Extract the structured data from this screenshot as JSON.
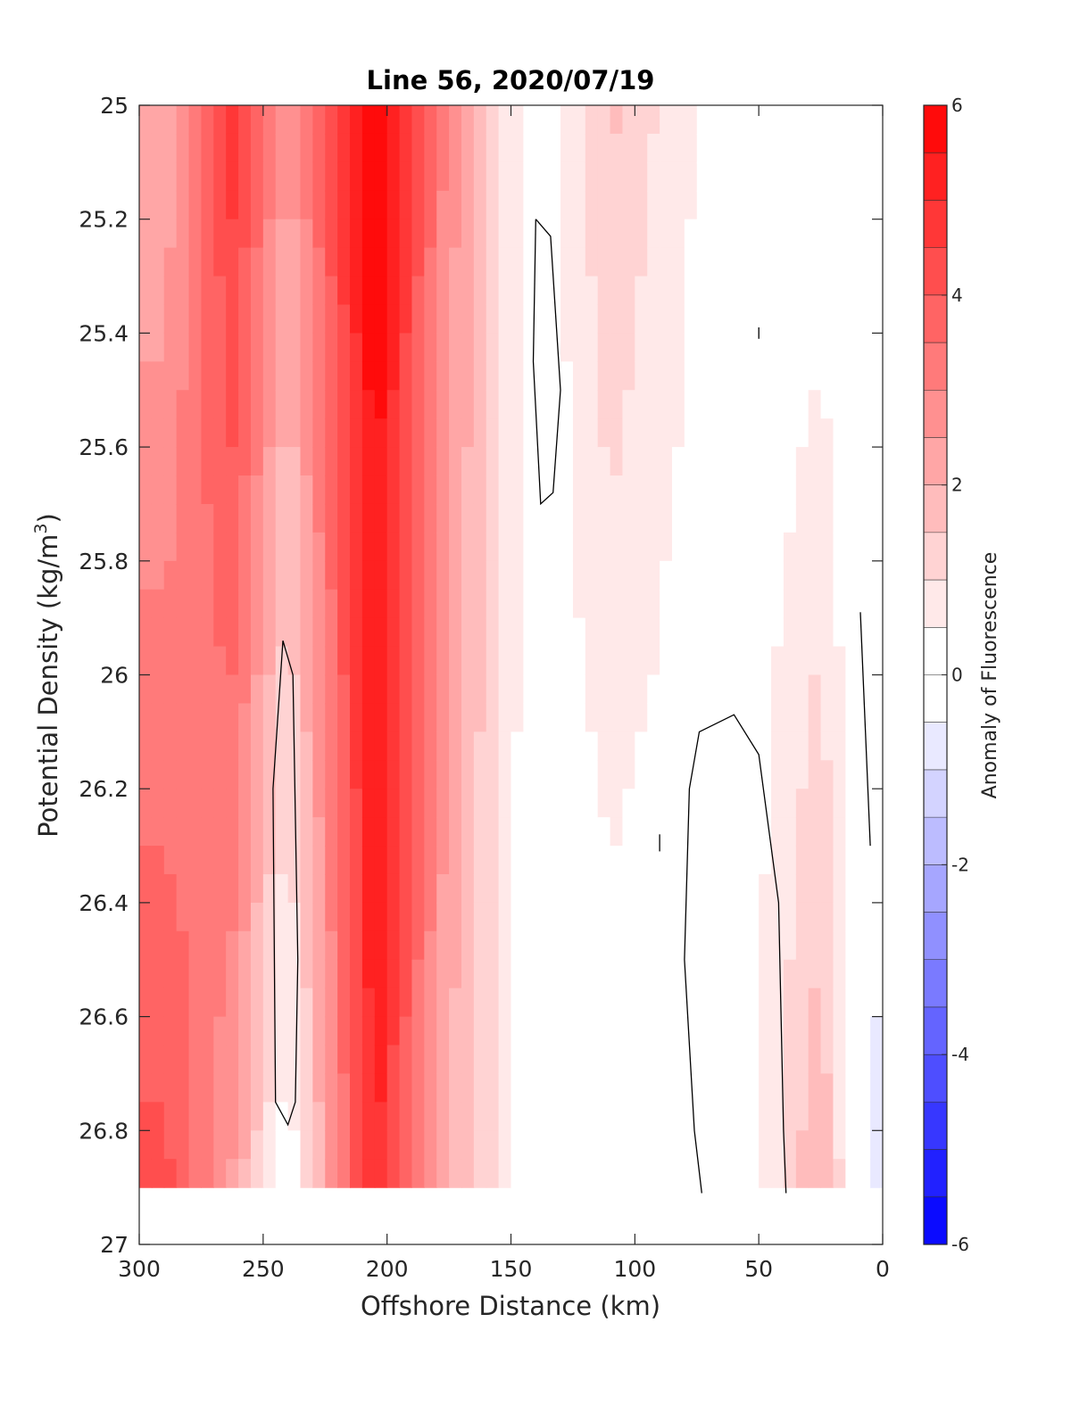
{
  "chart_data": {
    "type": "heatmap",
    "subtype": "filled-contour",
    "title": "Line 56, 2020/07/19",
    "xlabel": "Offshore Distance (km)",
    "ylabel": "Potential Density (kg/m³)",
    "ylabel_base": "Potential Density (kg/m",
    "ylabel_sup": "3",
    "ylabel_close": ")",
    "xlim": [
      300,
      0
    ],
    "ylim": [
      25,
      27
    ],
    "x_reversed": true,
    "y_reversed": true,
    "xticks": [
      300,
      250,
      200,
      150,
      100,
      50,
      0
    ],
    "yticks": [
      25,
      25.2,
      25.4,
      25.6,
      25.8,
      26,
      26.2,
      26.4,
      26.6,
      26.8,
      27
    ],
    "xtick_labels": [
      "300",
      "250",
      "200",
      "150",
      "100",
      "50",
      "0"
    ],
    "ytick_labels": [
      "25",
      "25.2",
      "25.4",
      "25.6",
      "25.8",
      "26",
      "26.2",
      "26.4",
      "26.6",
      "26.8",
      "27"
    ],
    "colorbar": {
      "label": "Anomaly of Fluorescence",
      "range": [
        -6,
        6
      ],
      "levels": [
        -6,
        -5.5,
        -5,
        -4.5,
        -4,
        -3.5,
        -3,
        -2.5,
        -2,
        -1.5,
        -1,
        -0.5,
        0,
        0.5,
        1,
        1.5,
        2,
        2.5,
        3,
        3.5,
        4,
        4.5,
        5,
        5.5,
        6
      ],
      "ticks": [
        6,
        4,
        2,
        0,
        -2,
        -4,
        -6
      ],
      "tick_labels": [
        "6",
        "4",
        "2",
        "0",
        "-2",
        "-4",
        "-6"
      ],
      "colormap": "blue-white-red",
      "low_color": "#0000ff",
      "mid_color": "#ffffff",
      "high_color": "#ff0000"
    },
    "data_extent": {
      "density_max": 26.9,
      "distance_max": 300
    },
    "bands": [
      {
        "x_center": 290,
        "value_top": 2.0,
        "value_bottom": 4.2
      },
      {
        "x_center": 262,
        "value_top": 4.8,
        "value_bottom": 2.4
      },
      {
        "x_center": 240,
        "value_top": 2.5,
        "value_bottom": 0.0
      },
      {
        "x_center": 205,
        "value_top": 6.0,
        "value_bottom": 5.2
      },
      {
        "x_center": 175,
        "value_top": 2.8,
        "value_bottom": 2.0
      },
      {
        "x_center": 140,
        "value_top": 0.0,
        "value_bottom": 0.0
      },
      {
        "x_center": 110,
        "value_top": 1.6,
        "value_bottom": 0.0
      },
      {
        "x_center": 60,
        "value_top": 0.0,
        "value_bottom": 0.0
      },
      {
        "x_center": 25,
        "value_top": 0.0,
        "value_bottom": 2.0
      },
      {
        "x_center": 5,
        "value_top": 0.0,
        "value_bottom": -0.6
      }
    ],
    "zero_contours": [
      {
        "name": "near 140 km",
        "points": [
          [
            140,
            25.2
          ],
          [
            134,
            25.23
          ],
          [
            130,
            25.5
          ],
          [
            133,
            25.68
          ],
          [
            138,
            25.7
          ],
          [
            141,
            25.45
          ],
          [
            140,
            25.2
          ]
        ]
      },
      {
        "name": "near 240 km",
        "points": [
          [
            242,
            25.94
          ],
          [
            238,
            26.0
          ],
          [
            236,
            26.5
          ],
          [
            237,
            26.75
          ],
          [
            240,
            26.79
          ],
          [
            245,
            26.75
          ],
          [
            246,
            26.2
          ],
          [
            242,
            25.94
          ]
        ]
      },
      {
        "name": "near 60 km",
        "points": [
          [
            73,
            26.91
          ],
          [
            76,
            26.8
          ],
          [
            80,
            26.5
          ],
          [
            78,
            26.2
          ],
          [
            74,
            26.1
          ],
          [
            60,
            26.07
          ],
          [
            50,
            26.14
          ],
          [
            42,
            26.4
          ],
          [
            40,
            26.8
          ],
          [
            39,
            26.91
          ]
        ]
      },
      {
        "name": "near 5 km",
        "points": [
          [
            9,
            25.89
          ],
          [
            5,
            26.3
          ]
        ]
      },
      {
        "name": "speck near 90 km",
        "points": [
          [
            90,
            26.28
          ],
          [
            90,
            26.31
          ]
        ]
      },
      {
        "name": "speck near 50 km",
        "points": [
          [
            50,
            25.39
          ],
          [
            50,
            25.41
          ]
        ]
      }
    ]
  }
}
